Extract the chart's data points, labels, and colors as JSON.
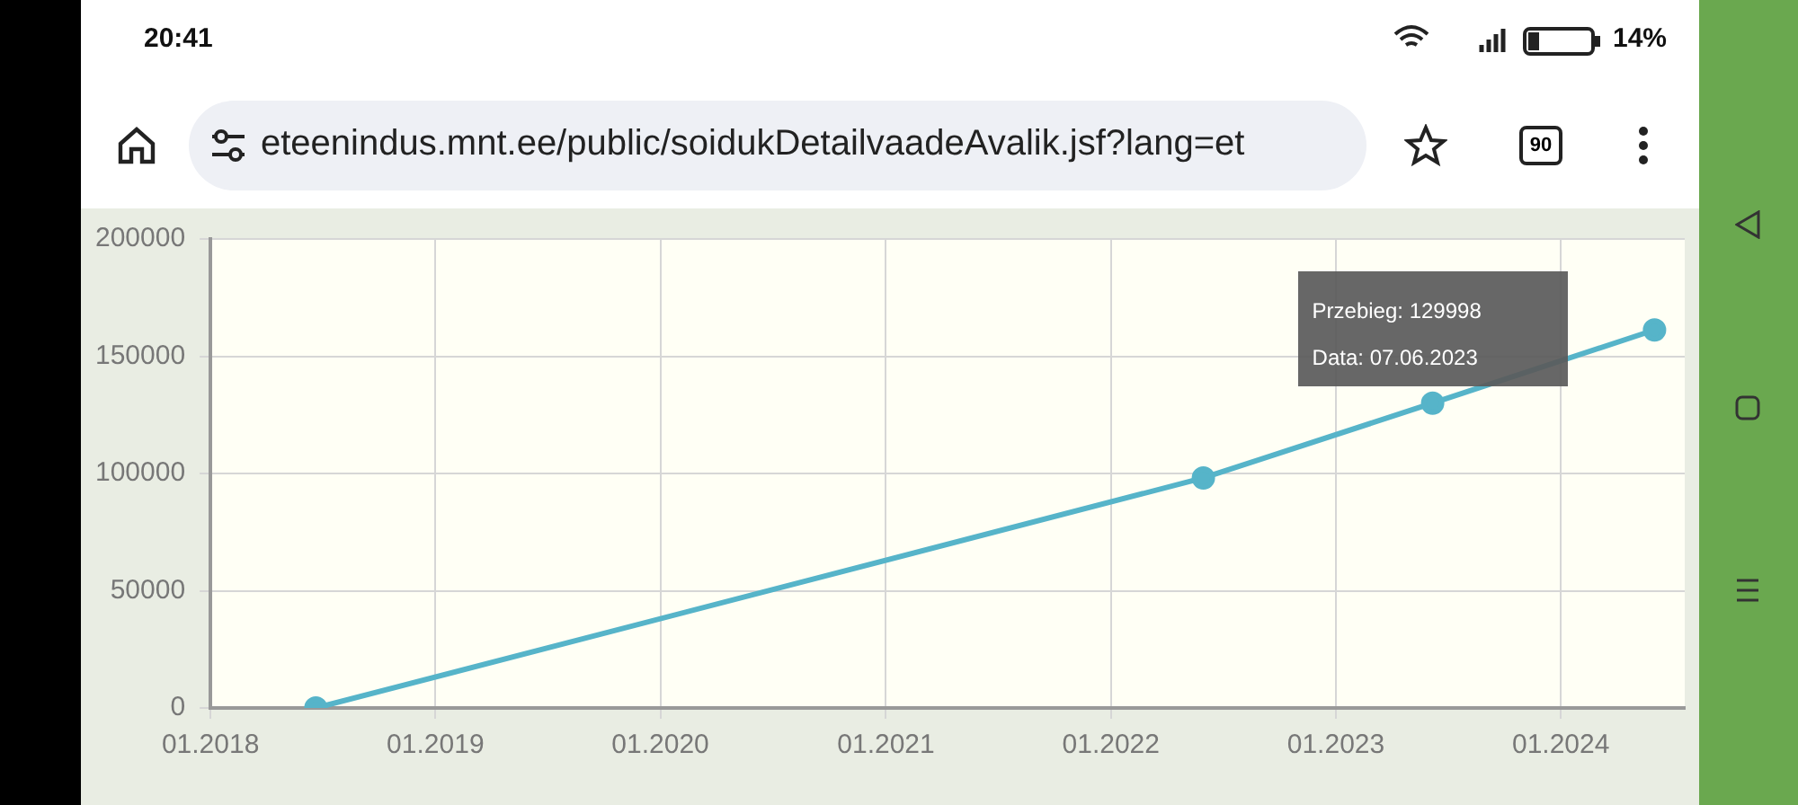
{
  "chart_data": {
    "type": "line",
    "x": [
      "2018-06-21",
      "2022-05-31",
      "2023-06-07",
      "2024-06-01"
    ],
    "values": [
      0,
      98100,
      129998,
      161200
    ],
    "color": "#56b4c9",
    "xlim": [
      "2018-01-01",
      "2024-07-20"
    ],
    "xticks": [
      {
        "value": "2018-01",
        "label": "01.2018"
      },
      {
        "value": "2019-01",
        "label": "01.2019"
      },
      {
        "value": "2020-01",
        "label": "01.2020"
      },
      {
        "value": "2021-01",
        "label": "01.2021"
      },
      {
        "value": "2022-01",
        "label": "01.2022"
      },
      {
        "value": "2023-01",
        "label": "01.2023"
      },
      {
        "value": "2024-01",
        "label": "01.2024"
      }
    ],
    "ylim": [
      0,
      200000
    ],
    "yticks": [
      0,
      50000,
      100000,
      150000,
      200000
    ],
    "grid": true,
    "legend": false,
    "marker": "circle",
    "line_style": "solid",
    "annotations": [
      {
        "text": "Przebieg: 129998\nData: 07.06.2023",
        "x": "2023-06-07",
        "y": 129998
      },
      "20:41",
      "14%",
      "eteenindus.mnt.ee/public/soidukDetailvaadeAvalik.jsf?lang=et",
      "90"
    ]
  }
}
